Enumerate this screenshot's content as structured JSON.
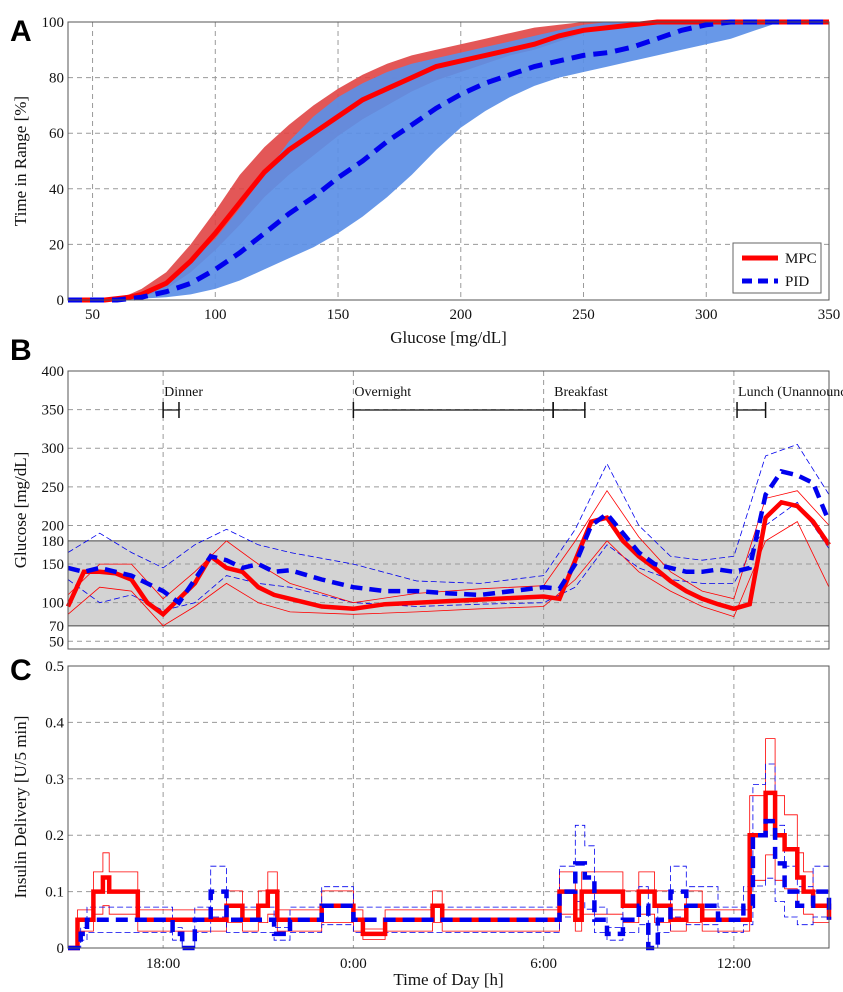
{
  "colors": {
    "mpc": "#ff0000",
    "pid": "#0000ee",
    "mpc_band": "#e04545",
    "pid_band": "#5b8fe6",
    "target_band": "#d3d3d3",
    "grid": "#9a9a9a"
  },
  "chart_data": [
    {
      "panel": "A",
      "type": "area",
      "xlabel": "Glucose [mg/dL]",
      "ylabel": "Time in Range [%]",
      "xlim": [
        40,
        350
      ],
      "ylim": [
        0,
        100
      ],
      "xticks": [
        50,
        100,
        150,
        200,
        250,
        300,
        350
      ],
      "yticks": [
        0,
        20,
        40,
        60,
        80,
        100
      ],
      "grid": true,
      "legend_position": "bottom-right",
      "series": [
        {
          "name": "MPC",
          "style": "solid",
          "x": [
            40,
            55,
            60,
            65,
            70,
            80,
            90,
            100,
            110,
            120,
            130,
            140,
            150,
            160,
            170,
            180,
            190,
            200,
            210,
            220,
            230,
            240,
            250,
            260,
            270,
            280,
            290,
            300,
            350
          ],
          "y": [
            0,
            0,
            0.5,
            1,
            2,
            6,
            14,
            24,
            35,
            46,
            54,
            60,
            66,
            72,
            76,
            80,
            84,
            86,
            88,
            90,
            92,
            95,
            97,
            98,
            99,
            100,
            100,
            100,
            100
          ],
          "band_lower": [
            0,
            0,
            0,
            0.5,
            1,
            4,
            10,
            18,
            27,
            37,
            45,
            52,
            59,
            65,
            70,
            75,
            79,
            82,
            85,
            88,
            90,
            93,
            96,
            97.5,
            98.5,
            99.5,
            100,
            100,
            100
          ],
          "band_upper": [
            0,
            0,
            1,
            2,
            4,
            10,
            20,
            32,
            45,
            55,
            63,
            70,
            76,
            81,
            85,
            88,
            90,
            92,
            94,
            96,
            98,
            99,
            100,
            100,
            100,
            100,
            100,
            100,
            100
          ]
        },
        {
          "name": "PID",
          "style": "dashed",
          "x": [
            40,
            60,
            65,
            70,
            80,
            90,
            100,
            110,
            120,
            130,
            140,
            150,
            160,
            170,
            180,
            190,
            200,
            210,
            220,
            230,
            240,
            250,
            260,
            270,
            280,
            290,
            300,
            310,
            320,
            330,
            350
          ],
          "y": [
            0,
            0,
            0.5,
            1,
            3,
            6,
            11,
            17,
            24,
            31,
            37,
            44,
            50,
            57,
            63,
            69,
            74,
            78,
            81,
            84,
            86,
            88,
            89,
            91,
            94,
            97,
            99,
            100,
            100,
            100,
            100
          ],
          "band_lower": [
            0,
            0,
            0,
            0.5,
            1,
            2,
            4,
            7,
            11,
            15,
            19,
            24,
            30,
            37,
            45,
            54,
            62,
            68,
            73,
            77,
            80,
            82,
            84,
            86,
            88,
            90,
            92,
            94,
            97,
            100,
            100
          ],
          "band_upper": [
            0,
            0,
            1,
            2,
            6,
            14,
            22,
            33,
            45,
            57,
            66,
            73,
            78,
            82,
            85,
            87,
            89,
            91,
            93,
            95,
            97,
            99,
            100,
            100,
            100,
            100,
            100,
            100,
            100,
            100,
            100
          ]
        }
      ]
    },
    {
      "panel": "B",
      "type": "line",
      "ylabel": "Glucose [mg/dL]",
      "xlim_hours": [
        15,
        39
      ],
      "ylim": [
        40,
        400
      ],
      "yticks": [
        50,
        70,
        100,
        150,
        180,
        200,
        250,
        300,
        350,
        400
      ],
      "target_range": [
        70,
        180
      ],
      "annotations": [
        {
          "label": "Dinner",
          "start": 18,
          "end": 18.5
        },
        {
          "label": "Overnight",
          "start": 24,
          "end": 30.3
        },
        {
          "label": "Breakfast",
          "start": 30.3,
          "end": 31.3
        },
        {
          "label": "Lunch (Unannounced)",
          "start": 36.1,
          "end": 37
        }
      ],
      "series": [
        {
          "name": "MPC",
          "style": "solid",
          "t": [
            15,
            15.5,
            16,
            16.5,
            17,
            17.5,
            18,
            18.5,
            19,
            19.5,
            20,
            20.5,
            21,
            21.5,
            22,
            23,
            24,
            25,
            26,
            27,
            28,
            29,
            30,
            30.5,
            31,
            31.5,
            32,
            32.5,
            33,
            33.5,
            34,
            34.5,
            35,
            35.5,
            36,
            36.5,
            37,
            37.5,
            38,
            38.5,
            39
          ],
          "y": [
            95,
            140,
            140,
            138,
            130,
            100,
            85,
            105,
            125,
            160,
            145,
            140,
            120,
            110,
            105,
            95,
            92,
            98,
            100,
            102,
            104,
            106,
            108,
            105,
            155,
            205,
            210,
            180,
            160,
            145,
            128,
            115,
            105,
            98,
            92,
            98,
            210,
            230,
            225,
            205,
            175
          ]
        },
        {
          "name": "PID",
          "style": "dashed",
          "t": [
            15,
            15.5,
            16,
            16.5,
            17,
            17.5,
            18,
            18.5,
            19,
            19.5,
            20,
            20.5,
            21,
            21.5,
            22,
            23,
            24,
            25,
            26,
            27,
            28,
            29,
            30,
            30.5,
            31,
            31.5,
            32,
            32.5,
            33,
            33.5,
            34,
            34.5,
            35,
            35.5,
            36,
            36.5,
            37,
            37.5,
            38,
            38.5,
            39
          ],
          "y": [
            145,
            140,
            145,
            140,
            135,
            125,
            115,
            100,
            130,
            160,
            155,
            145,
            150,
            140,
            142,
            130,
            120,
            115,
            115,
            112,
            110,
            115,
            120,
            118,
            150,
            200,
            215,
            190,
            165,
            150,
            145,
            140,
            140,
            143,
            140,
            145,
            240,
            270,
            265,
            255,
            205
          ]
        },
        {
          "name": "MPC band",
          "style": "thin",
          "t": [
            15,
            16,
            17,
            18,
            19,
            20,
            21,
            22,
            24,
            26,
            28,
            30,
            31,
            32,
            33,
            34,
            35,
            36,
            37,
            38,
            39
          ],
          "lower": [
            85,
            120,
            115,
            70,
            95,
            125,
            100,
            88,
            85,
            88,
            92,
            95,
            130,
            180,
            140,
            115,
            95,
            82,
            180,
            205,
            120
          ],
          "upper": [
            110,
            150,
            150,
            105,
            140,
            180,
            150,
            125,
            100,
            112,
            118,
            122,
            180,
            245,
            185,
            140,
            115,
            105,
            235,
            245,
            200
          ]
        },
        {
          "name": "PID band",
          "style": "thin",
          "t": [
            15,
            16,
            17,
            18,
            19,
            20,
            21,
            22,
            24,
            26,
            28,
            30,
            31,
            32,
            33,
            34,
            35,
            36,
            37,
            38,
            39
          ],
          "lower": [
            130,
            100,
            110,
            90,
            100,
            135,
            125,
            120,
            100,
            95,
            98,
            100,
            120,
            175,
            145,
            130,
            125,
            125,
            200,
            230,
            170
          ],
          "upper": [
            165,
            190,
            165,
            145,
            175,
            195,
            175,
            165,
            150,
            128,
            125,
            135,
            195,
            280,
            200,
            160,
            155,
            160,
            290,
            305,
            240
          ]
        }
      ]
    },
    {
      "panel": "C",
      "type": "line",
      "xlabel": "Time of Day [h]",
      "ylabel": "Insulin Delivery [U/5 min]",
      "xlim_hours": [
        15,
        39
      ],
      "xticks": [
        "18:00",
        "0:00",
        "6:00",
        "12:00"
      ],
      "xtick_hours": [
        18,
        24,
        30,
        36
      ],
      "ylim": [
        0,
        0.5
      ],
      "yticks": [
        0,
        0.1,
        0.2,
        0.3,
        0.4,
        0.5
      ],
      "series": [
        {
          "name": "MPC",
          "style": "step",
          "t": [
            15,
            15.3,
            15.8,
            16.1,
            16.3,
            16.5,
            17.2,
            18,
            18.5,
            19,
            20,
            20.5,
            21,
            21.3,
            21.6,
            22,
            23,
            24,
            24.3,
            25,
            26.5,
            26.8,
            27,
            29,
            30,
            30.5,
            31,
            31.2,
            31.4,
            32,
            32.5,
            33,
            33.5,
            34,
            34.5,
            35,
            35.5,
            36,
            36.5,
            37,
            37.3,
            37.6,
            38,
            38.2,
            38.5,
            39
          ],
          "y": [
            0,
            0.05,
            0.1,
            0.125,
            0.1,
            0.1,
            0.05,
            0.05,
            0.05,
            0.05,
            0.075,
            0.05,
            0.075,
            0.1,
            0.05,
            0.05,
            0.075,
            0.05,
            0.025,
            0.05,
            0.075,
            0.05,
            0.05,
            0.05,
            0.05,
            0.1,
            0.05,
            0.1,
            0.1,
            0.1,
            0.075,
            0.1,
            0.075,
            0.05,
            0.075,
            0.05,
            0.05,
            0.05,
            0.2,
            0.275,
            0.2,
            0.175,
            0.125,
            0.1,
            0.075,
            0.05
          ]
        },
        {
          "name": "PID",
          "style": "dashed-step",
          "t": [
            15,
            15.4,
            15.6,
            16,
            17,
            18,
            18.3,
            18.6,
            19,
            19.5,
            20,
            21,
            21.5,
            22,
            23,
            24,
            25,
            26,
            27,
            28,
            29,
            30,
            30.5,
            31,
            31.3,
            31.6,
            32,
            32.5,
            33,
            33.3,
            33.6,
            34,
            34.5,
            35,
            35.5,
            36,
            36.3,
            36.6,
            37,
            37.3,
            37.6,
            38,
            38.5,
            39
          ],
          "y": [
            0,
            0.025,
            0.05,
            0.05,
            0.05,
            0.05,
            0.025,
            0,
            0.05,
            0.1,
            0.05,
            0.05,
            0.025,
            0.05,
            0.075,
            0.05,
            0.05,
            0.05,
            0.05,
            0.05,
            0.05,
            0.05,
            0.1,
            0.15,
            0.125,
            0.05,
            0.025,
            0.05,
            0.075,
            0,
            0.05,
            0.1,
            0.075,
            0.075,
            0.05,
            0.05,
            0.075,
            0.2,
            0.225,
            0.15,
            0.1,
            0.075,
            0.1,
            0.05
          ]
        }
      ]
    }
  ],
  "panels": {
    "A": {
      "letter": "A"
    },
    "B": {
      "letter": "B"
    },
    "C": {
      "letter": "C"
    }
  }
}
